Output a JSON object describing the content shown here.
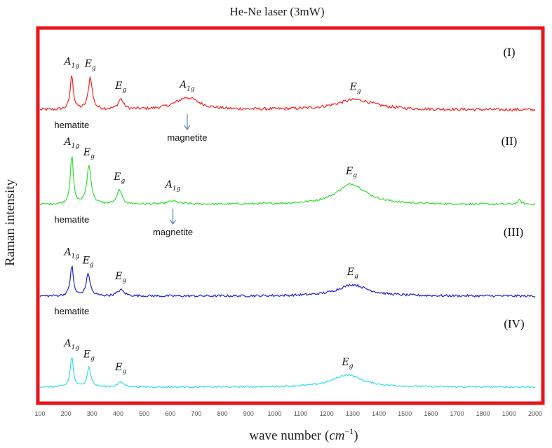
{
  "chart_data": {
    "type": "line",
    "title": "He-Ne laser (3mW)",
    "ylabel": "Raman intensity",
    "xlabel": {
      "text": "wave number (",
      "unit": "cm",
      "exponent": "−1",
      "close": ")"
    },
    "xlim": [
      100,
      2000
    ],
    "x_ticks": [
      100,
      200,
      300,
      400,
      500,
      600,
      700,
      800,
      900,
      1000,
      1100,
      1200,
      1300,
      1400,
      1500,
      1600,
      1700,
      1800,
      1900,
      2000
    ],
    "frame_color": "#e8141c",
    "series": [
      {
        "label": "(I)",
        "color": "#ff2222",
        "peaks": [
          {
            "x": 222,
            "h": 0.85,
            "w": 7
          },
          {
            "x": 293,
            "h": 0.8,
            "w": 9
          },
          {
            "x": 410,
            "h": 0.25,
            "w": 12
          },
          {
            "x": 665,
            "h": 0.3,
            "w": 55
          },
          {
            "x": 1310,
            "h": 0.25,
            "w": 90
          }
        ],
        "noise": 0.09,
        "annotations": [
          {
            "kind": "mode",
            "base": "A",
            "sub": "1g",
            "x": 222
          },
          {
            "kind": "mode",
            "base": "E",
            "sub": "g",
            "x": 293
          },
          {
            "kind": "mode",
            "base": "E",
            "sub": "g",
            "x": 410
          },
          {
            "kind": "mode",
            "base": "A",
            "sub": "1g",
            "x": 665
          },
          {
            "kind": "mode",
            "base": "E",
            "sub": "g",
            "x": 1310
          },
          {
            "kind": "text",
            "text": "hematite",
            "x": 222
          },
          {
            "kind": "arrow",
            "text": "magnetite",
            "x": 665
          }
        ]
      },
      {
        "label": "(II)",
        "color": "#33dd33",
        "peaks": [
          {
            "x": 222,
            "h": 1.2,
            "w": 7
          },
          {
            "x": 288,
            "h": 0.95,
            "w": 10
          },
          {
            "x": 405,
            "h": 0.35,
            "w": 11
          },
          {
            "x": 610,
            "h": 0.08,
            "w": 25
          },
          {
            "x": 1295,
            "h": 0.5,
            "w": 70
          },
          {
            "x": 1940,
            "h": 0.1,
            "w": 8
          }
        ],
        "noise": 0.06,
        "annotations": [
          {
            "kind": "mode",
            "base": "A",
            "sub": "1g",
            "x": 222
          },
          {
            "kind": "mode",
            "base": "E",
            "sub": "g",
            "x": 288
          },
          {
            "kind": "mode",
            "base": "E",
            "sub": "g",
            "x": 405
          },
          {
            "kind": "mode",
            "base": "A",
            "sub": "1g",
            "x": 610
          },
          {
            "kind": "mode",
            "base": "E",
            "sub": "g",
            "x": 1295
          },
          {
            "kind": "text",
            "text": "hematite",
            "x": 222
          },
          {
            "kind": "arrow",
            "text": "magnetite",
            "x": 610
          }
        ]
      },
      {
        "label": "(III)",
        "color": "#2222cc",
        "peaks": [
          {
            "x": 222,
            "h": 0.75,
            "w": 7
          },
          {
            "x": 285,
            "h": 0.55,
            "w": 9
          },
          {
            "x": 410,
            "h": 0.15,
            "w": 15
          },
          {
            "x": 1300,
            "h": 0.28,
            "w": 70
          }
        ],
        "noise": 0.07,
        "annotations": [
          {
            "kind": "mode",
            "base": "A",
            "sub": "1g",
            "x": 222
          },
          {
            "kind": "mode",
            "base": "E",
            "sub": "g",
            "x": 285
          },
          {
            "kind": "mode",
            "base": "E",
            "sub": "g",
            "x": 410
          },
          {
            "kind": "mode",
            "base": "E",
            "sub": "g",
            "x": 1300
          },
          {
            "kind": "text",
            "text": "hematite",
            "x": 222
          }
        ]
      },
      {
        "label": "(IV)",
        "color": "#33ddee",
        "peaks": [
          {
            "x": 222,
            "h": 0.75,
            "w": 7
          },
          {
            "x": 288,
            "h": 0.48,
            "w": 9
          },
          {
            "x": 410,
            "h": 0.12,
            "w": 14
          },
          {
            "x": 1280,
            "h": 0.3,
            "w": 70
          }
        ],
        "noise": 0.05,
        "annotations": [
          {
            "kind": "mode",
            "base": "A",
            "sub": "1g",
            "x": 222
          },
          {
            "kind": "mode",
            "base": "E",
            "sub": "g",
            "x": 288
          },
          {
            "kind": "mode",
            "base": "E",
            "sub": "g",
            "x": 410
          },
          {
            "kind": "mode",
            "base": "E",
            "sub": "g",
            "x": 1280
          }
        ]
      }
    ]
  }
}
